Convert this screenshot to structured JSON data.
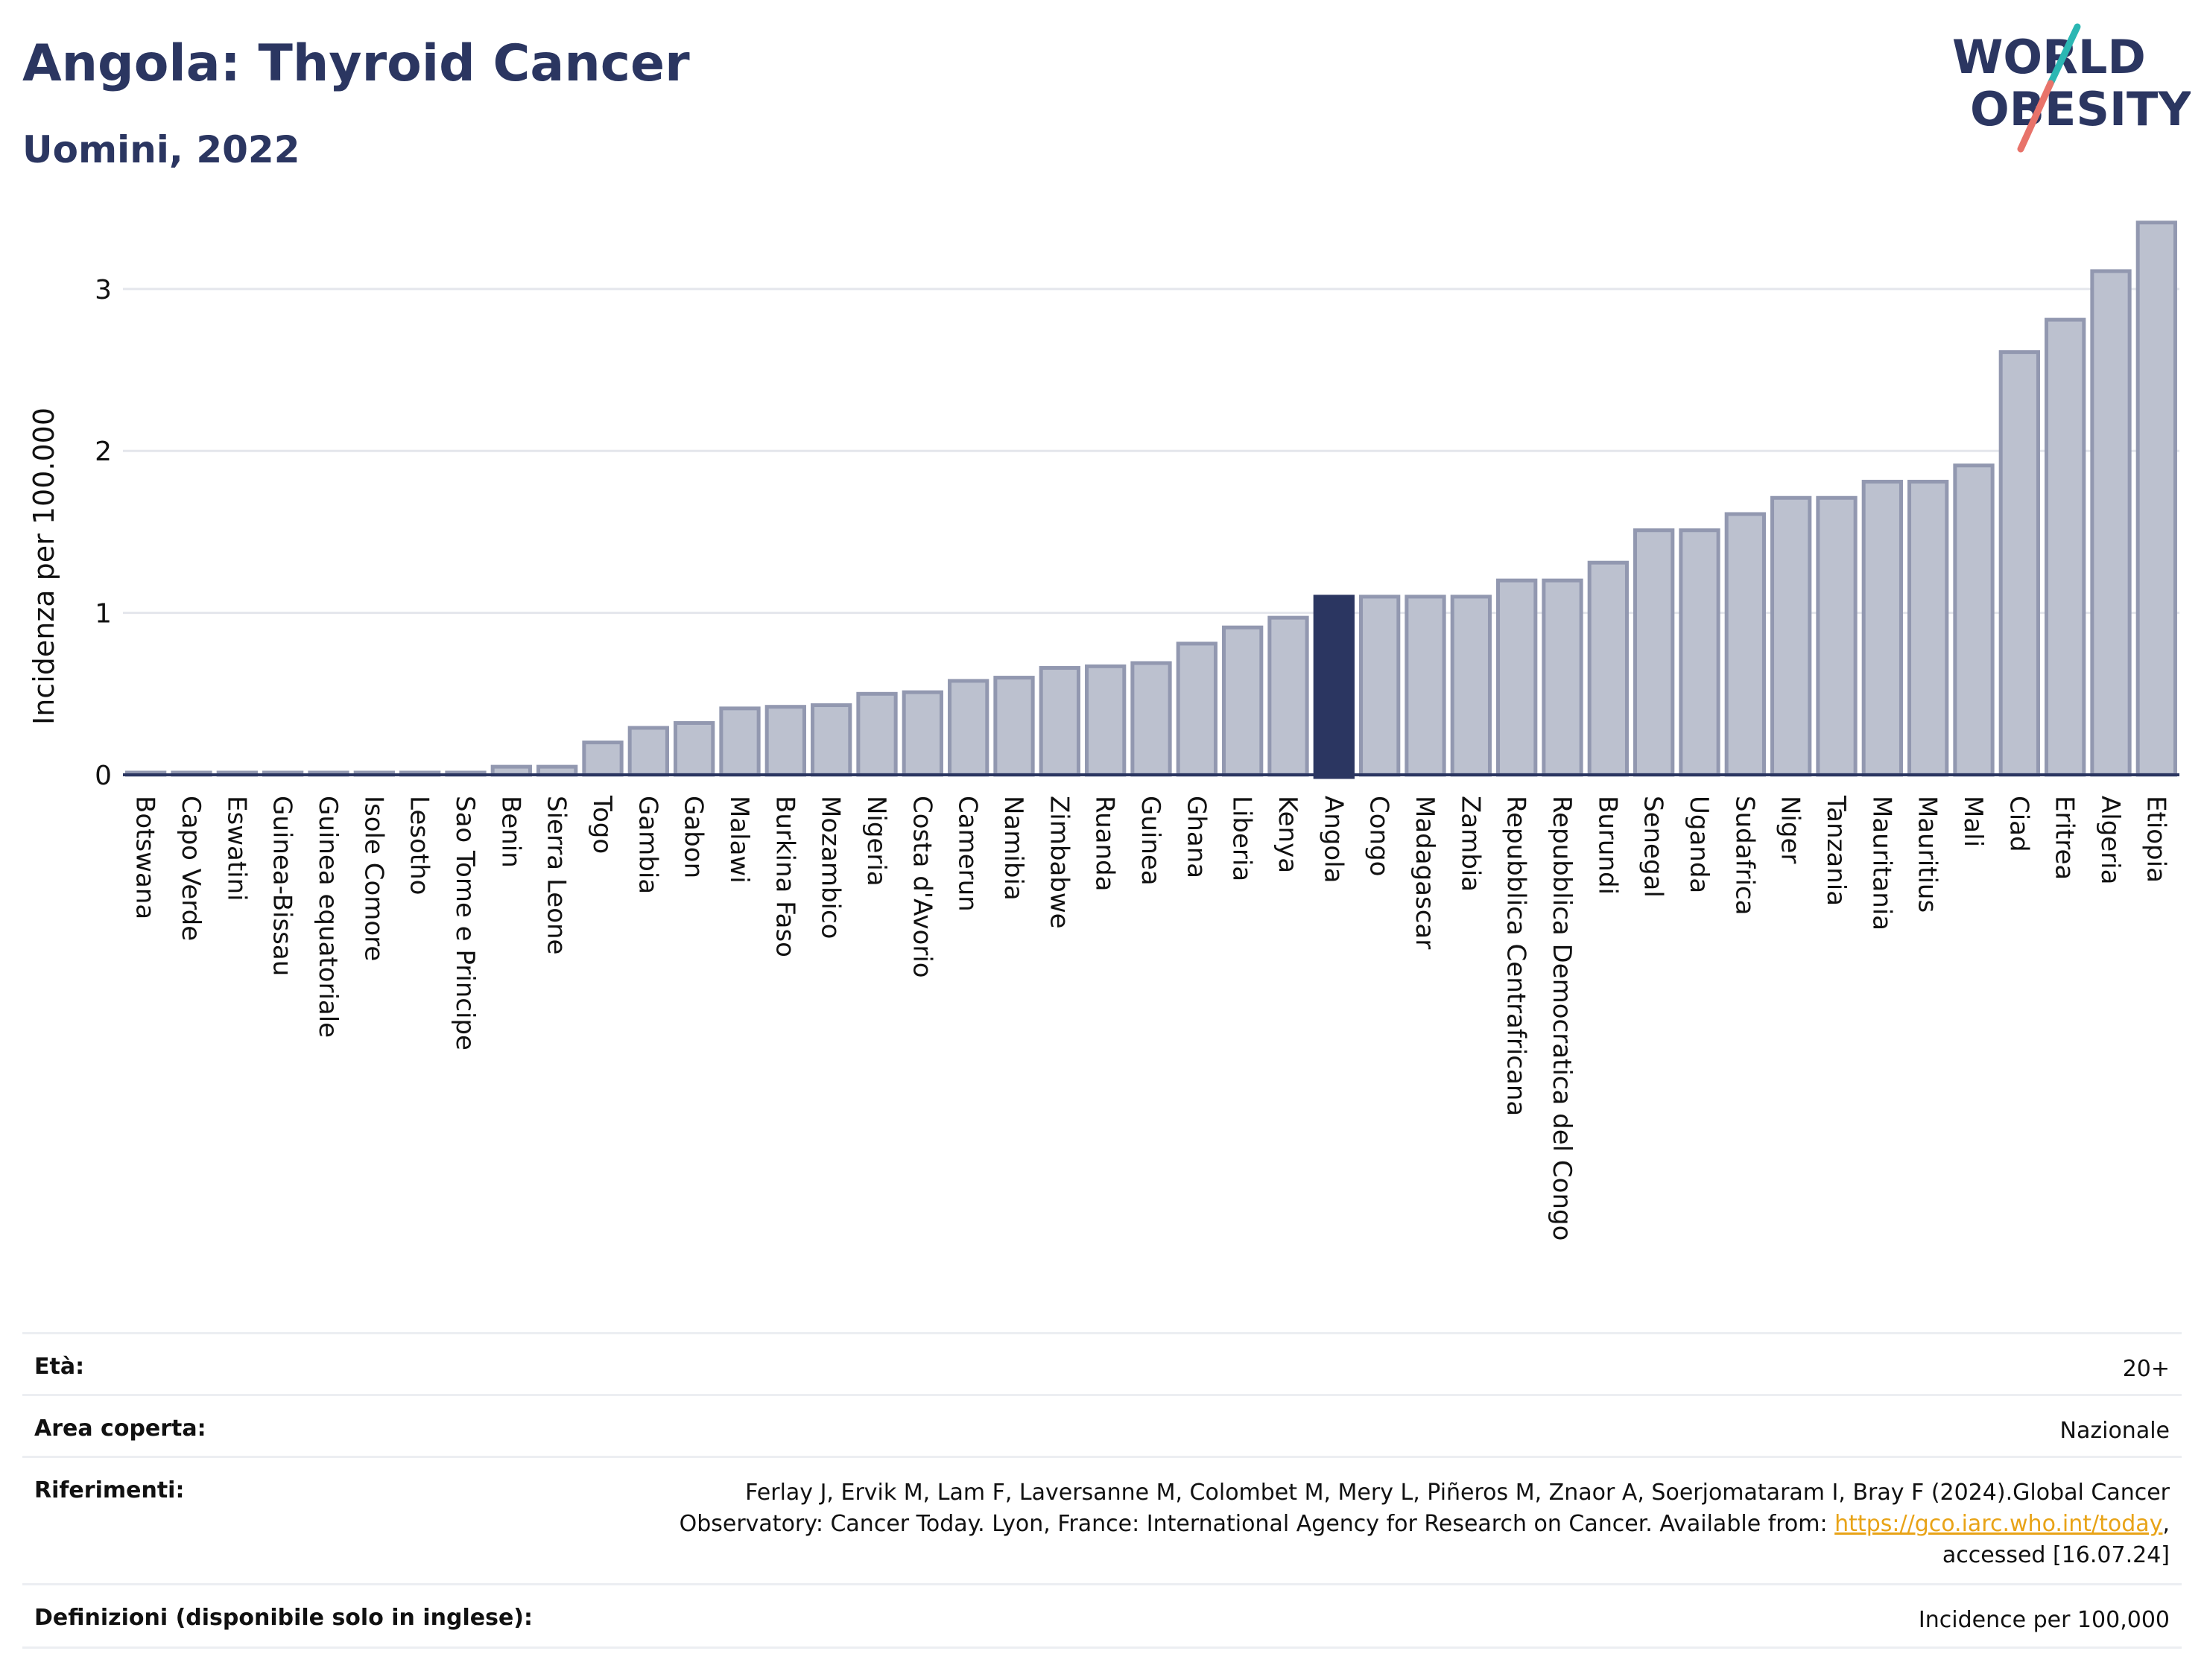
{
  "header": {
    "title": "Angola: Thyroid Cancer",
    "subtitle": "Uomini, 2022"
  },
  "logo": {
    "line1": "WORLD",
    "line2": "OBESITY",
    "colors": {
      "text": "#2b3661",
      "slash_teal": "#2bb7b3",
      "slash_coral": "#e8736a"
    }
  },
  "chart_data": {
    "type": "bar",
    "ylabel": "Incidenza per 100.000",
    "ylim": [
      0,
      3.45
    ],
    "yticks": [
      0,
      1,
      2,
      3
    ],
    "grid": true,
    "highlight": "Angola",
    "colors": {
      "bar": "#bcc1cf",
      "bar_edge": "#9298b0",
      "highlight": "#2b3661"
    },
    "categories": [
      "Botswana",
      "Capo Verde",
      "Eswatini",
      "Guinea-Bissau",
      "Guinea equatoriale",
      "Isole Comore",
      "Lesotho",
      "Sao Tome e Principe",
      "Benin",
      "Sierra Leone",
      "Togo",
      "Gambia",
      "Gabon",
      "Malawi",
      "Burkina Faso",
      "Mozambico",
      "Nigeria",
      "Costa d'Avorio",
      "Camerun",
      "Namibia",
      "Zimbabwe",
      "Ruanda",
      "Guinea",
      "Ghana",
      "Liberia",
      "Kenya",
      "Angola",
      "Congo",
      "Madagascar",
      "Zambia",
      "Repubblica Centrafricana",
      "Repubblica Democratica del Congo",
      "Burundi",
      "Senegal",
      "Uganda",
      "Sudafrica",
      "Niger",
      "Tanzania",
      "Mauritania",
      "Mauritius",
      "Mali",
      "Ciad",
      "Eritrea",
      "Algeria",
      "Etiopia"
    ],
    "values": [
      0.01,
      0.01,
      0.01,
      0.01,
      0.01,
      0.01,
      0.01,
      0.01,
      0.05,
      0.05,
      0.2,
      0.29,
      0.32,
      0.41,
      0.42,
      0.43,
      0.5,
      0.51,
      0.58,
      0.6,
      0.66,
      0.67,
      0.69,
      0.81,
      0.91,
      0.97,
      1.1,
      1.1,
      1.1,
      1.1,
      1.2,
      1.2,
      1.31,
      1.51,
      1.51,
      1.61,
      1.71,
      1.71,
      1.81,
      1.81,
      1.91,
      2.61,
      2.81,
      3.11,
      3.41
    ]
  },
  "info": {
    "age_label": "Età:",
    "age_value": "20+",
    "area_label": "Area coperta:",
    "area_value": "Nazionale",
    "ref_label": "Riferimenti:",
    "ref_line1": "Ferlay J, Ervik M, Lam F, Laversanne M, Colombet M, Mery L, Piñeros M, Znaor A, Soerjomataram I, Bray F (2024).Global Cancer",
    "ref_line2": "Observatory: Cancer Today. Lyon, France: International Agency for Research on Cancer. Available from: ",
    "ref_link": "https://gco.iarc.who.int/today",
    "ref_line2_end": ",",
    "ref_line3": "accessed [16.07.24]",
    "def_label": "Definizioni (disponibile solo in inglese):",
    "def_value": "Incidence per 100,000"
  }
}
